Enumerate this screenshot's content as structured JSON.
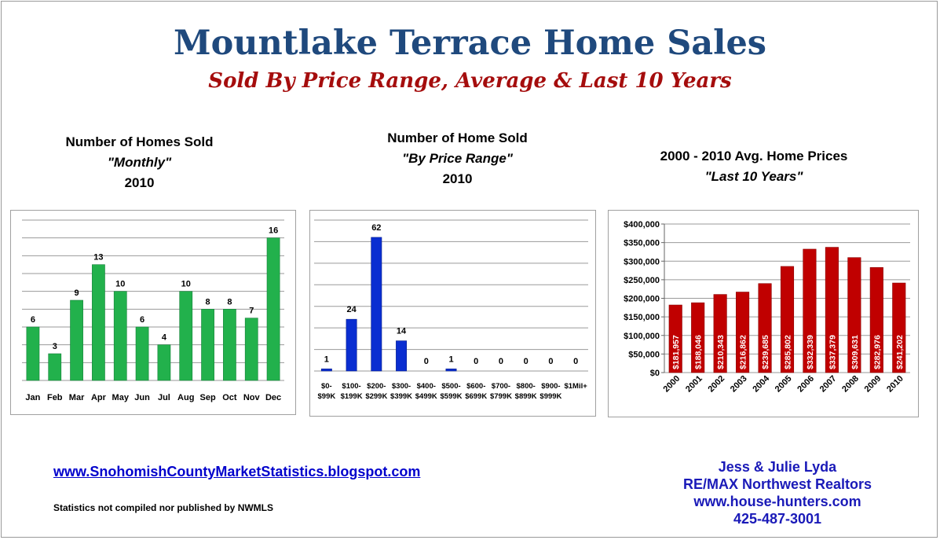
{
  "title": "Mountlake Terrace Home Sales",
  "subtitle": "Sold By Price Range, Average & Last 10 Years",
  "charts": {
    "monthly": {
      "line1": "Number of Homes Sold",
      "line2": "\"Monthly\"",
      "line3": "2010"
    },
    "price_range": {
      "line1": "Number of Home Sold",
      "line2": "\"By Price Range\"",
      "line3": "2010"
    },
    "avg_price": {
      "line1": "2000 - 2010 Avg. Home Prices",
      "line2": "\"Last 10 Years\""
    }
  },
  "footer": {
    "link_text": "www.SnohomishCountyMarketStatistics.blogspot.com",
    "disclaimer": "Statistics not compiled nor published by NWMLS",
    "contact": [
      "Jess & Julie Lyda",
      "RE/MAX Northwest Realtors",
      "www.house-hunters.com",
      "425-487-3001"
    ]
  },
  "colors": {
    "title": "#1f497d",
    "subtitle": "#a50d0d",
    "green_bar": "#22b14c",
    "blue_bar": "#0a2ed1",
    "red_bar": "#c00000",
    "contact": "#1a1ab8",
    "link": "#0000cc"
  },
  "chart_data": [
    {
      "type": "bar",
      "categories": [
        "Jan",
        "Feb",
        "Mar",
        "Apr",
        "May",
        "Jun",
        "Jul",
        "Aug",
        "Sep",
        "Oct",
        "Nov",
        "Dec"
      ],
      "values": [
        6,
        3,
        9,
        13,
        10,
        6,
        4,
        10,
        8,
        8,
        7,
        16
      ],
      "ylim": [
        0,
        18
      ],
      "grid": true,
      "data_labels": true
    },
    {
      "type": "bar",
      "categories": [
        [
          "$0-",
          "$99K"
        ],
        [
          "$100-",
          "$199K"
        ],
        [
          "$200-",
          "$299K"
        ],
        [
          "$300-",
          "$399K"
        ],
        [
          "$400-",
          "$499K"
        ],
        [
          "$500-",
          "$599K"
        ],
        [
          "$600-",
          "$699K"
        ],
        [
          "$700-",
          "$799K"
        ],
        [
          "$800-",
          "$899K"
        ],
        [
          "$900-",
          "$999K"
        ],
        [
          "$1Mil+",
          ""
        ]
      ],
      "values": [
        1,
        24,
        62,
        14,
        0,
        1,
        0,
        0,
        0,
        0,
        0
      ],
      "ylim": [
        0,
        70
      ],
      "grid": true,
      "data_labels": true
    },
    {
      "type": "bar",
      "categories": [
        "2000",
        "2001",
        "2002",
        "2003",
        "2004",
        "2005",
        "2006",
        "2007",
        "2008",
        "2009",
        "2010"
      ],
      "values": [
        181957,
        188046,
        210343,
        216862,
        239685,
        285802,
        332339,
        337379,
        309631,
        282976,
        241202
      ],
      "value_labels": [
        "$181,957",
        "$188,046",
        "$210,343",
        "$216,862",
        "$239,685",
        "$285,802",
        "$332,339",
        "$337,379",
        "$309,631",
        "$282,976",
        "$241,202"
      ],
      "y_ticks": [
        "$0",
        "$50,000",
        "$100,000",
        "$150,000",
        "$200,000",
        "$250,000",
        "$300,000",
        "$350,000",
        "$400,000"
      ],
      "ylim": [
        0,
        400000
      ],
      "grid": true,
      "data_labels": true
    }
  ]
}
